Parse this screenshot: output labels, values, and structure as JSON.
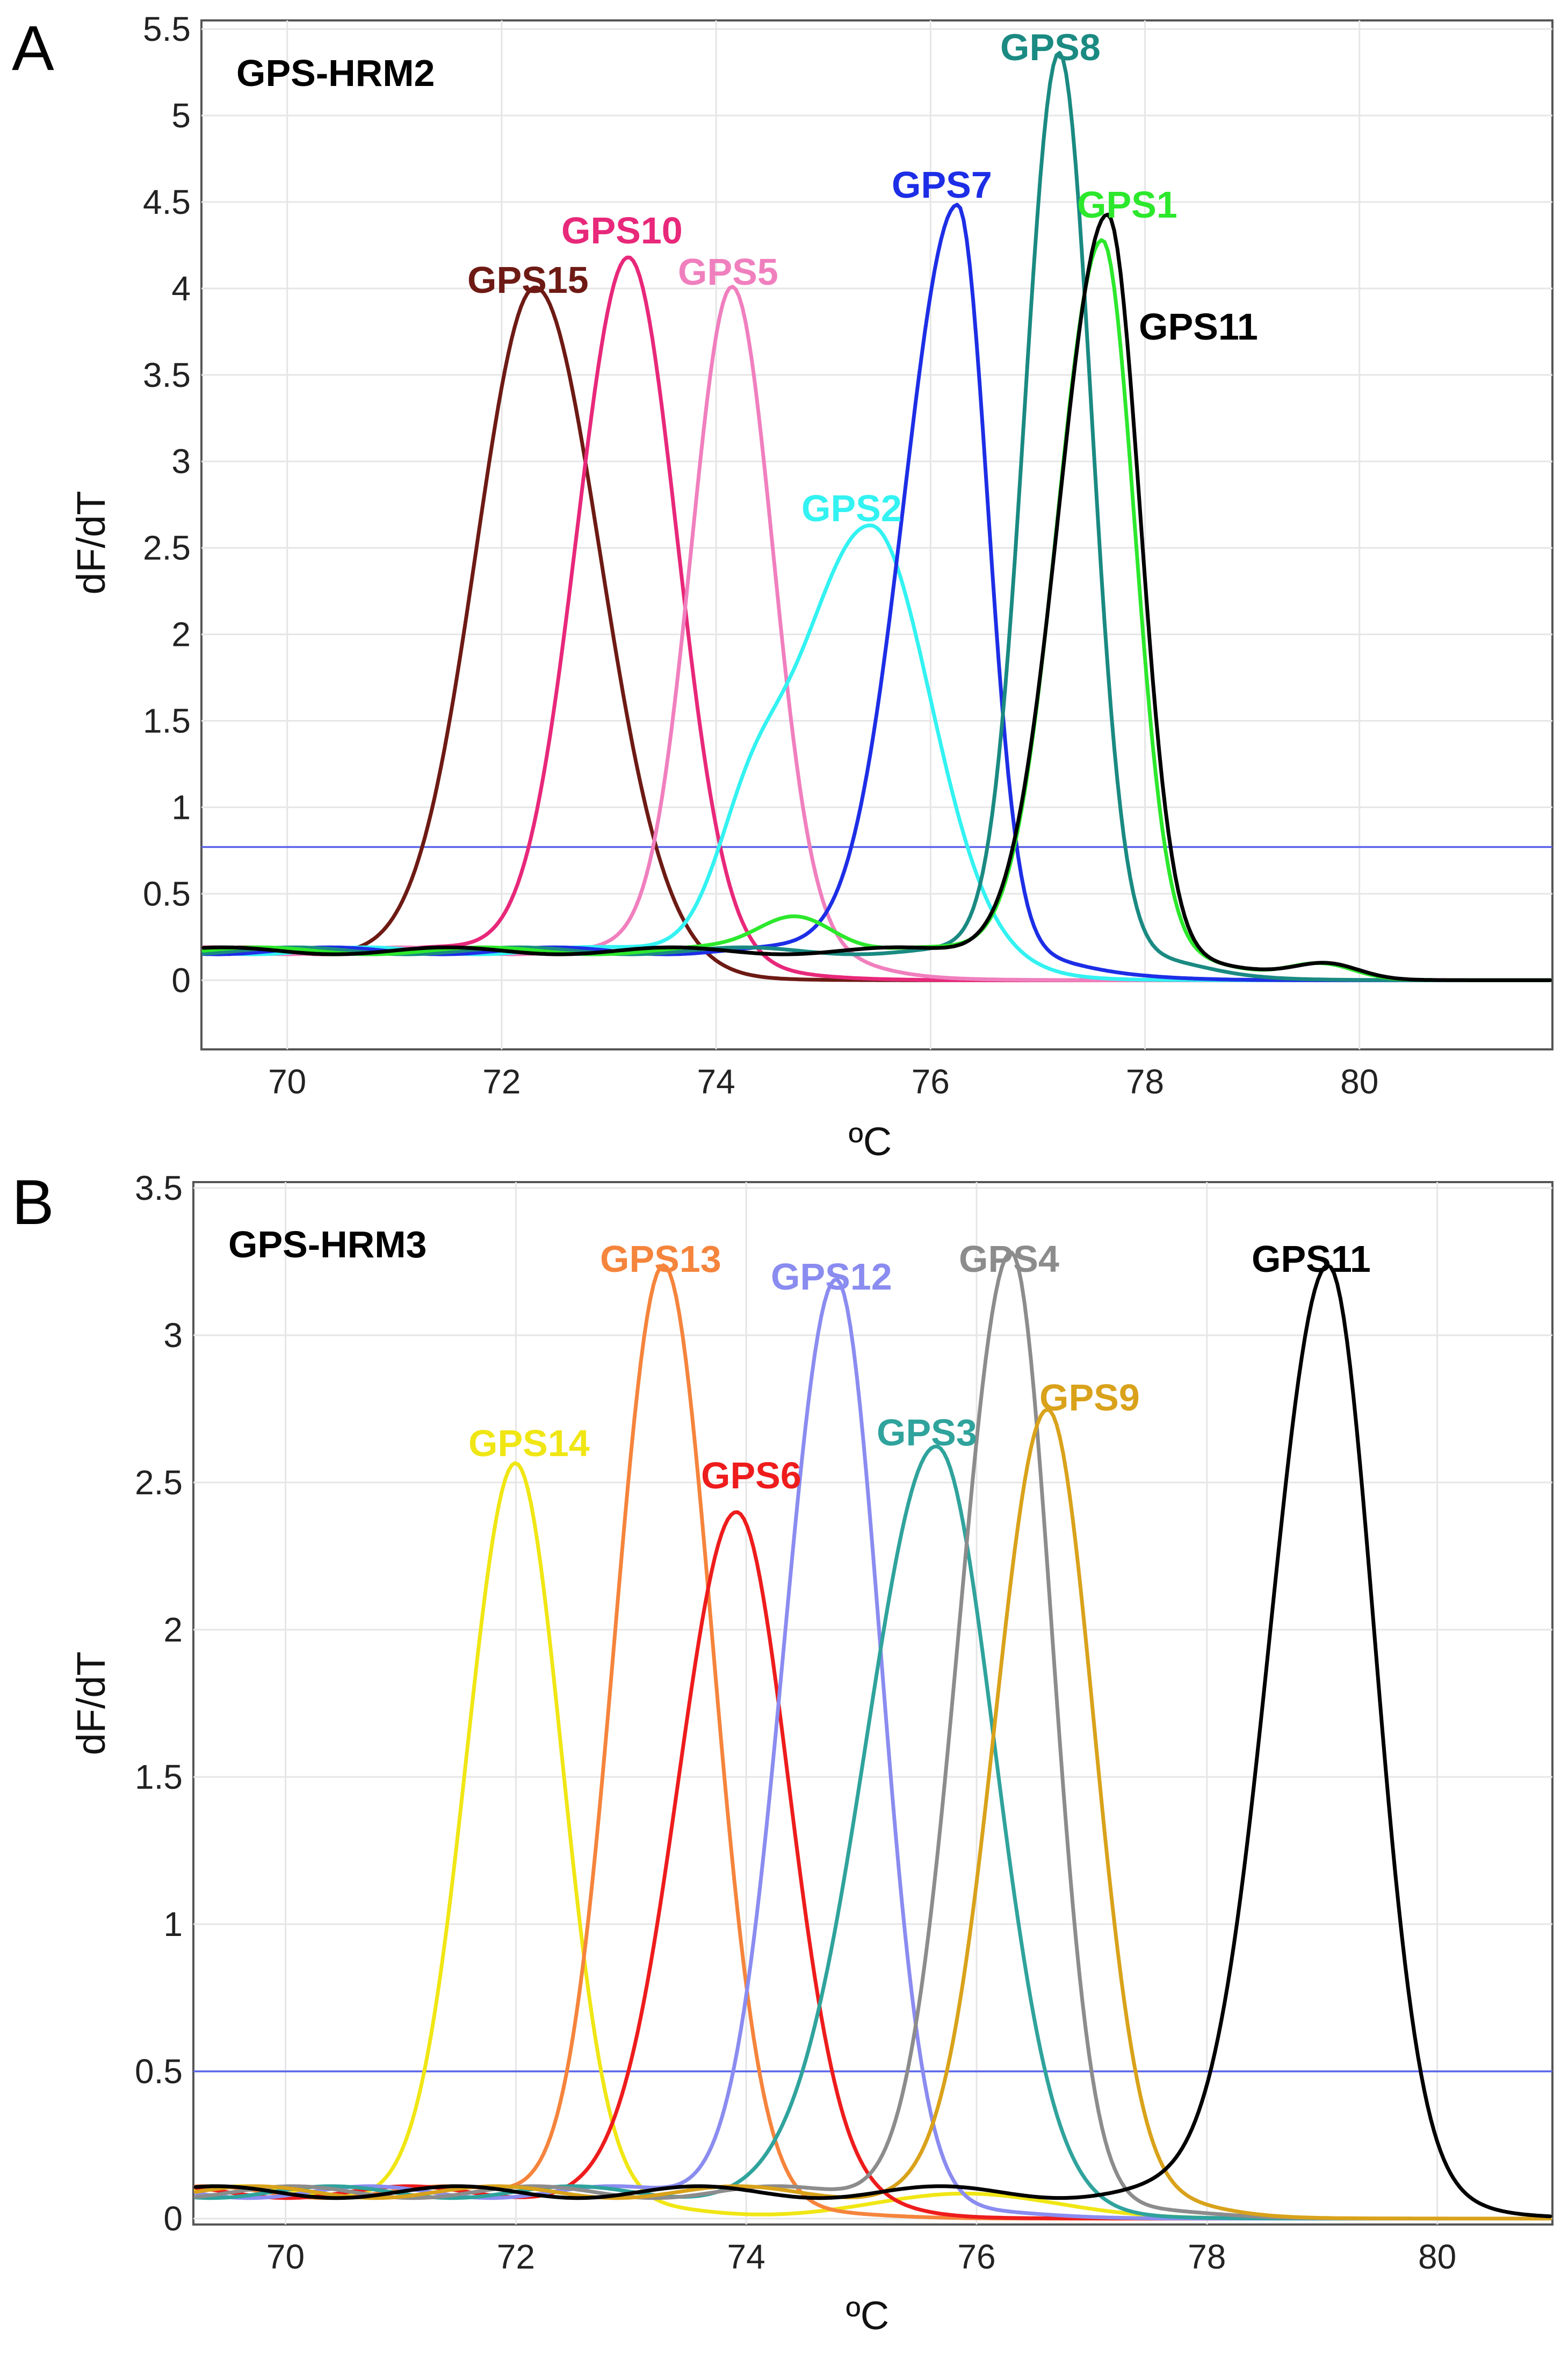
{
  "chart_data": [
    {
      "type": "line",
      "panel_label": "A",
      "title": "GPS-HRM2",
      "xlabel": "ºC",
      "ylabel": "dF/dT",
      "xlim": [
        69.2,
        81.8
      ],
      "ylim": [
        -0.4,
        5.55
      ],
      "xticks": [
        70,
        72,
        74,
        76,
        78,
        80
      ],
      "yticks": [
        0,
        0.5,
        1,
        1.5,
        2,
        2.5,
        3,
        3.5,
        4,
        4.5,
        5,
        5.5
      ],
      "x_tick_labels": [
        "70",
        "72",
        "74",
        "76",
        "78",
        "80"
      ],
      "y_tick_labels": [
        "0",
        "0.5",
        "1",
        "1.5",
        "2",
        "2.5",
        "3",
        "3.5",
        "4",
        "4.5",
        "5",
        "5.5"
      ],
      "threshold": 0.77,
      "baseline": 0.17,
      "series": [
        {
          "name": "GPS15",
          "color": "#6e1a14",
          "peaks": [
            {
              "x": 72.32,
              "y": 3.93,
              "wl": 0.55,
              "wr": 0.6
            }
          ]
        },
        {
          "name": "GPS10",
          "color": "#e8287a",
          "peaks": [
            {
              "x": 73.18,
              "y": 4.09,
              "wl": 0.48,
              "wr": 0.45
            }
          ]
        },
        {
          "name": "GPS5",
          "color": "#f07fbe",
          "peaks": [
            {
              "x": 74.15,
              "y": 3.95,
              "wl": 0.38,
              "wr": 0.38
            }
          ]
        },
        {
          "name": "GPS2",
          "color": "#33f2f2",
          "peaks": [
            {
              "x": 75.45,
              "y": 2.55,
              "wl": 0.7,
              "wr": 0.55
            },
            {
              "x": 74.3,
              "y": 0.55,
              "wl": 0.3,
              "wr": 0.3
            }
          ]
        },
        {
          "name": "GPS7",
          "color": "#1d2ee6",
          "peaks": [
            {
              "x": 76.25,
              "y": 4.4,
              "wl": 0.5,
              "wr": 0.28
            }
          ]
        },
        {
          "name": "GPS8",
          "color": "#1a8a82",
          "peaks": [
            {
              "x": 77.2,
              "y": 5.3,
              "wl": 0.32,
              "wr": 0.3
            }
          ]
        },
        {
          "name": "GPS1",
          "color": "#2ce82c",
          "peaks": [
            {
              "x": 77.6,
              "y": 4.2,
              "wl": 0.42,
              "wr": 0.3
            },
            {
              "x": 74.75,
              "y": 0.3,
              "wl": 0.35,
              "wr": 0.35
            },
            {
              "x": 79.65,
              "y": 0.17,
              "wl": 0.3,
              "wr": 0.3
            }
          ]
        },
        {
          "name": "GPS11",
          "color": "#000000",
          "peaks": [
            {
              "x": 77.65,
              "y": 4.33,
              "wl": 0.45,
              "wr": 0.3
            },
            {
              "x": 79.7,
              "y": 0.17,
              "wl": 0.3,
              "wr": 0.3
            }
          ]
        }
      ]
    },
    {
      "type": "line",
      "panel_label": "B",
      "title": "GPS-HRM3",
      "xlabel": "ºC",
      "ylabel": "dF/dT",
      "xlim": [
        69.2,
        81.0
      ],
      "ylim": [
        -0.02,
        3.52
      ],
      "xticks": [
        70,
        72,
        74,
        76,
        78,
        80
      ],
      "yticks": [
        0,
        0.5,
        1,
        1.5,
        2,
        2.5,
        3,
        3.5
      ],
      "x_tick_labels": [
        "70",
        "72",
        "74",
        "76",
        "78",
        "80"
      ],
      "y_tick_labels": [
        "0",
        "0.5",
        "1",
        "1.5",
        "2",
        "2.5",
        "3",
        "3.5"
      ],
      "threshold": 0.5,
      "baseline": 0.09,
      "series": [
        {
          "name": "GPS14",
          "color": "#f0e614",
          "peaks": [
            {
              "x": 72.0,
              "y": 2.51,
              "wl": 0.42,
              "wr": 0.4
            },
            {
              "x": 75.9,
              "y": 0.13,
              "wl": 0.8,
              "wr": 0.8
            }
          ]
        },
        {
          "name": "GPS13",
          "color": "#f5843c",
          "peaks": [
            {
              "x": 73.28,
              "y": 3.18,
              "wl": 0.42,
              "wr": 0.42
            }
          ]
        },
        {
          "name": "GPS6",
          "color": "#ee1c1c",
          "peaks": [
            {
              "x": 73.92,
              "y": 2.37,
              "wl": 0.5,
              "wr": 0.45
            }
          ]
        },
        {
          "name": "GPS12",
          "color": "#8a8cf0",
          "peaks": [
            {
              "x": 74.78,
              "y": 3.13,
              "wl": 0.45,
              "wr": 0.38
            }
          ]
        },
        {
          "name": "GPS3",
          "color": "#2fa39c",
          "peaks": [
            {
              "x": 75.65,
              "y": 2.6,
              "wl": 0.6,
              "wr": 0.5
            }
          ]
        },
        {
          "name": "GPS4",
          "color": "#8c8c8c",
          "peaks": [
            {
              "x": 76.3,
              "y": 3.22,
              "wl": 0.45,
              "wr": 0.35
            }
          ]
        },
        {
          "name": "GPS9",
          "color": "#d9a21a",
          "peaks": [
            {
              "x": 76.62,
              "y": 2.71,
              "wl": 0.45,
              "wr": 0.4
            }
          ]
        },
        {
          "name": "GPS11",
          "color": "#000000",
          "peaks": [
            {
              "x": 79.05,
              "y": 3.21,
              "wl": 0.5,
              "wr": 0.4
            }
          ]
        }
      ]
    }
  ]
}
